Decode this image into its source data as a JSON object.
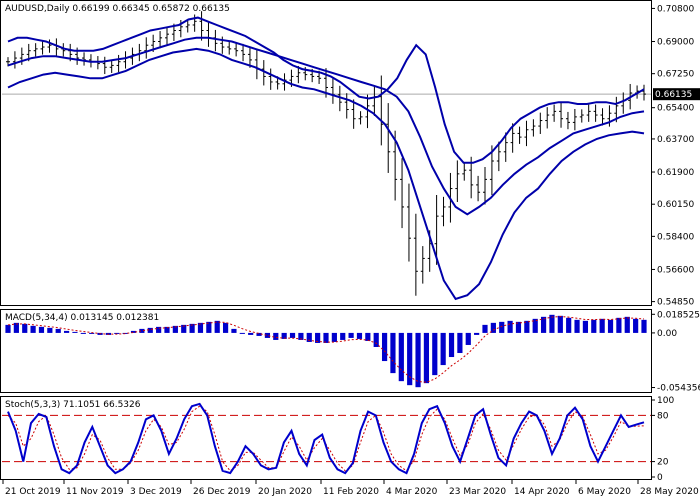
{
  "chart_data": [
    {
      "type": "candlestick",
      "symbol": "AUDUSD,Daily",
      "ohlc_readout": "0.66199 0.66345 0.65872 0.66135",
      "current_price_label": "0.66135",
      "y_ticks": [
        "0.70800",
        "0.69000",
        "0.67250",
        "0.65400",
        "0.63700",
        "0.61900",
        "0.60150",
        "0.58400",
        "0.56600",
        "0.54850"
      ],
      "y_tick_values": [
        0.708,
        0.69,
        0.6725,
        0.654,
        0.637,
        0.619,
        0.6015,
        0.584,
        0.566,
        0.5485
      ],
      "ylim": [
        0.5472,
        0.7115
      ],
      "current_price": 0.66135,
      "close": [
        0.679,
        0.681,
        0.683,
        0.685,
        0.686,
        0.687,
        0.688,
        0.686,
        0.685,
        0.683,
        0.681,
        0.68,
        0.679,
        0.678,
        0.676,
        0.677,
        0.679,
        0.681,
        0.683,
        0.685,
        0.688,
        0.69,
        0.692,
        0.694,
        0.696,
        0.698,
        0.699,
        0.701,
        0.696,
        0.692,
        0.689,
        0.687,
        0.686,
        0.685,
        0.683,
        0.68,
        0.675,
        0.671,
        0.668,
        0.667,
        0.669,
        0.671,
        0.673,
        0.672,
        0.671,
        0.67,
        0.665,
        0.661,
        0.657,
        0.653,
        0.648,
        0.649,
        0.655,
        0.66,
        0.645,
        0.63,
        0.615,
        0.6,
        0.583,
        0.565,
        0.572,
        0.58,
        0.595,
        0.6,
        0.61,
        0.618,
        0.62,
        0.612,
        0.608,
        0.615,
        0.625,
        0.63,
        0.635,
        0.64,
        0.638,
        0.642,
        0.644,
        0.647,
        0.65,
        0.652,
        0.648,
        0.646,
        0.649,
        0.65,
        0.652,
        0.65,
        0.648,
        0.651,
        0.655,
        0.658,
        0.662,
        0.663,
        0.6614
      ],
      "upper_band": [
        0.69,
        0.692,
        0.692,
        0.691,
        0.69,
        0.688,
        0.686,
        0.685,
        0.685,
        0.685,
        0.686,
        0.688,
        0.69,
        0.692,
        0.694,
        0.696,
        0.697,
        0.698,
        0.699,
        0.702,
        0.703,
        0.701,
        0.699,
        0.697,
        0.695,
        0.693,
        0.69,
        0.687,
        0.684,
        0.68,
        0.677,
        0.675,
        0.674,
        0.673,
        0.671,
        0.668,
        0.664,
        0.66,
        0.659,
        0.66,
        0.664,
        0.67,
        0.68,
        0.688,
        0.683,
        0.665,
        0.645,
        0.63,
        0.624,
        0.624,
        0.626,
        0.63,
        0.636,
        0.643,
        0.648,
        0.651,
        0.654,
        0.656,
        0.657,
        0.657,
        0.656,
        0.656,
        0.657,
        0.657,
        0.656,
        0.658,
        0.661,
        0.664
      ],
      "middle_band": [
        0.677,
        0.679,
        0.681,
        0.682,
        0.682,
        0.681,
        0.68,
        0.679,
        0.679,
        0.68,
        0.681,
        0.683,
        0.685,
        0.687,
        0.689,
        0.691,
        0.692,
        0.692,
        0.691,
        0.69,
        0.688,
        0.686,
        0.684,
        0.682,
        0.68,
        0.678,
        0.676,
        0.674,
        0.672,
        0.67,
        0.668,
        0.666,
        0.664,
        0.66,
        0.652,
        0.638,
        0.622,
        0.61,
        0.6,
        0.596,
        0.6,
        0.605,
        0.612,
        0.618,
        0.623,
        0.627,
        0.632,
        0.636,
        0.64,
        0.642,
        0.644,
        0.646,
        0.649,
        0.651,
        0.652
      ],
      "lower_band": [
        0.665,
        0.668,
        0.67,
        0.672,
        0.673,
        0.672,
        0.671,
        0.67,
        0.67,
        0.672,
        0.674,
        0.677,
        0.68,
        0.682,
        0.684,
        0.685,
        0.686,
        0.685,
        0.683,
        0.68,
        0.678,
        0.676,
        0.673,
        0.67,
        0.667,
        0.665,
        0.664,
        0.662,
        0.66,
        0.658,
        0.655,
        0.651,
        0.645,
        0.635,
        0.62,
        0.6,
        0.58,
        0.56,
        0.55,
        0.552,
        0.558,
        0.57,
        0.585,
        0.597,
        0.605,
        0.61,
        0.618,
        0.625,
        0.63,
        0.634,
        0.637,
        0.639,
        0.64,
        0.641,
        0.64
      ]
    },
    {
      "type": "histogram",
      "title": "MACD(5,34,4) 0.013145 0.012381",
      "y_ticks": [
        "0.018525",
        "0.00",
        "-0.054356"
      ],
      "y_tick_values": [
        0.018525,
        0.0,
        -0.054356
      ],
      "ylim": [
        -0.0578,
        0.0218
      ],
      "values": [
        0.008,
        0.01,
        0.009,
        0.007,
        0.006,
        0.005,
        0.004,
        0.002,
        0.001,
        0.0,
        -0.001,
        -0.002,
        -0.002,
        -0.001,
        0.0,
        0.002,
        0.004,
        0.005,
        0.006,
        0.006,
        0.007,
        0.008,
        0.009,
        0.01,
        0.011,
        0.012,
        0.01,
        0.004,
        0.0,
        -0.002,
        -0.003,
        -0.005,
        -0.007,
        -0.006,
        -0.005,
        -0.007,
        -0.009,
        -0.01,
        -0.01,
        -0.009,
        -0.007,
        -0.005,
        -0.006,
        -0.008,
        -0.014,
        -0.028,
        -0.04,
        -0.048,
        -0.052,
        -0.054,
        -0.05,
        -0.042,
        -0.032,
        -0.024,
        -0.02,
        -0.012,
        -0.002,
        0.008,
        0.01,
        0.011,
        0.012,
        0.011,
        0.012,
        0.014,
        0.016,
        0.018,
        0.017,
        0.015,
        0.013,
        0.012,
        0.013,
        0.014,
        0.013,
        0.015,
        0.016,
        0.014,
        0.013
      ]
    },
    {
      "type": "line",
      "title": "Stoch(5,3,3) 71.1051 66.5326",
      "y_ticks": [
        "100",
        "80",
        "20",
        "0"
      ],
      "y_tick_values": [
        100,
        80,
        20,
        0
      ],
      "ylim": [
        0,
        100
      ],
      "levels": [
        80,
        20
      ],
      "main": [
        85,
        60,
        20,
        70,
        82,
        78,
        40,
        10,
        5,
        15,
        45,
        65,
        40,
        15,
        5,
        10,
        20,
        45,
        75,
        80,
        60,
        30,
        50,
        75,
        92,
        95,
        80,
        40,
        8,
        5,
        20,
        40,
        30,
        15,
        10,
        12,
        45,
        60,
        30,
        15,
        48,
        55,
        25,
        10,
        5,
        18,
        60,
        85,
        80,
        45,
        20,
        10,
        5,
        30,
        70,
        88,
        92,
        70,
        40,
        20,
        50,
        80,
        88,
        55,
        25,
        15,
        50,
        70,
        85,
        80,
        60,
        30,
        50,
        80,
        90,
        75,
        40,
        20,
        40,
        60,
        80,
        65,
        68,
        71
      ],
      "signal": [
        80,
        70,
        40,
        50,
        72,
        80,
        55,
        25,
        10,
        12,
        30,
        55,
        48,
        25,
        10,
        10,
        18,
        35,
        60,
        75,
        65,
        42,
        45,
        62,
        85,
        92,
        85,
        55,
        20,
        8,
        15,
        32,
        32,
        22,
        12,
        12,
        33,
        52,
        40,
        22,
        38,
        50,
        35,
        18,
        8,
        15,
        45,
        72,
        80,
        58,
        30,
        15,
        8,
        22,
        55,
        78,
        88,
        75,
        50,
        28,
        42,
        70,
        82,
        62,
        35,
        22,
        42,
        62,
        78,
        80,
        68,
        40,
        48,
        70,
        85,
        78,
        55,
        30,
        35,
        52,
        72,
        66,
        66,
        66.5
      ]
    }
  ],
  "x_labels": [
    "21 Oct 2019",
    "11 Nov 2019",
    "3 Dec 2019",
    "26 Dec 2019",
    "20 Jan 2020",
    "11 Feb 2020",
    "4 Mar 2020",
    "23 Mar 2020",
    "14 Apr 2020",
    "6 May 2020",
    "28 May 2020"
  ],
  "colors": {
    "bars": "#000000",
    "bands": "#0000aa",
    "macd": "#0000cc",
    "stoch_main": "#0000cc",
    "stoch_signal": "#cc0000",
    "levels": "#cc0000",
    "price_line": "#aaaaaa"
  }
}
